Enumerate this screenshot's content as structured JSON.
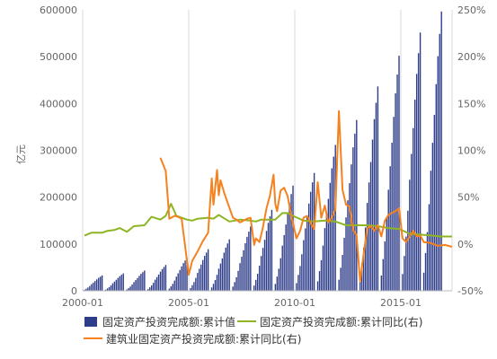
{
  "chart_data": {
    "type": "bar+line",
    "ylabel_left": "亿元",
    "left_axis": {
      "ylim": [
        0,
        600000
      ],
      "ticks": [
        0,
        100000,
        200000,
        300000,
        400000,
        500000,
        600000
      ]
    },
    "right_axis": {
      "ylim": [
        -50,
        250
      ],
      "ticks": [
        "-50%",
        "0%",
        "50%",
        "100%",
        "150%",
        "200%",
        "250%"
      ]
    },
    "x_axis": {
      "start": "2000-01",
      "end": "2017-06",
      "ticks": [
        "2000-01",
        "2005-01",
        "2010-01",
        "2015-01"
      ]
    },
    "grid": "vertical",
    "legend_position": "bottom",
    "series": [
      {
        "name": "固定资产投资完成额:累计值",
        "kind": "bar",
        "axis": "left",
        "color": "#2e3d8a",
        "annual_totals": [
          32900,
          37200,
          43200,
          55200,
          70400,
          88800,
          109900,
          137300,
          172800,
          224600,
          251700,
          311500,
          364800,
          436500,
          502000,
          551600,
          596500
        ],
        "note_shape": "monthly cumulative values rising each year from near zero (Jan–Feb) to the December total"
      },
      {
        "name": "固定资产投资完成额:累计同比(右)",
        "kind": "line",
        "axis": "right",
        "color": "#8db524",
        "points": [
          [
            "2000-02",
            9
          ],
          [
            "2000-06",
            12
          ],
          [
            "2000-12",
            12
          ],
          [
            "2001-03",
            14
          ],
          [
            "2001-07",
            15
          ],
          [
            "2001-10",
            17
          ],
          [
            "2002-02",
            13
          ],
          [
            "2002-06",
            19
          ],
          [
            "2002-12",
            20
          ],
          [
            "2003-03",
            27
          ],
          [
            "2003-04",
            29
          ],
          [
            "2003-09",
            26
          ],
          [
            "2003-12",
            30
          ],
          [
            "2004-03",
            43
          ],
          [
            "2004-06",
            30
          ],
          [
            "2004-12",
            26
          ],
          [
            "2005-03",
            25
          ],
          [
            "2005-06",
            27
          ],
          [
            "2005-12",
            28
          ],
          [
            "2006-03",
            27
          ],
          [
            "2006-06",
            31
          ],
          [
            "2006-12",
            24
          ],
          [
            "2007-03",
            25
          ],
          [
            "2007-06",
            26
          ],
          [
            "2007-12",
            25
          ],
          [
            "2008-03",
            24
          ],
          [
            "2008-06",
            26
          ],
          [
            "2008-12",
            26
          ],
          [
            "2009-02",
            26
          ],
          [
            "2009-06",
            33
          ],
          [
            "2009-09",
            33
          ],
          [
            "2009-12",
            30
          ],
          [
            "2010-06",
            25
          ],
          [
            "2010-12",
            24
          ],
          [
            "2011-06",
            25
          ],
          [
            "2011-12",
            24
          ],
          [
            "2012-06",
            20
          ],
          [
            "2012-12",
            20
          ],
          [
            "2013-06",
            20
          ],
          [
            "2013-12",
            19
          ],
          [
            "2014-06",
            17
          ],
          [
            "2014-12",
            16
          ],
          [
            "2015-06",
            11
          ],
          [
            "2015-12",
            10
          ],
          [
            "2016-06",
            9
          ],
          [
            "2016-12",
            8
          ],
          [
            "2017-06",
            8
          ]
        ]
      },
      {
        "name": "建筑业固定资产投资完成额:累计同比(右)",
        "kind": "line",
        "axis": "right",
        "color": "#f5821f",
        "points": [
          [
            "2003-09",
            92
          ],
          [
            "2003-12",
            78
          ],
          [
            "2004-02",
            27
          ],
          [
            "2004-05",
            30
          ],
          [
            "2004-07",
            29
          ],
          [
            "2004-09",
            27
          ],
          [
            "2005-01",
            -33
          ],
          [
            "2005-03",
            -18
          ],
          [
            "2005-06",
            -8
          ],
          [
            "2005-09",
            3
          ],
          [
            "2005-12",
            12
          ],
          [
            "2006-02",
            70
          ],
          [
            "2006-03",
            42
          ],
          [
            "2006-05",
            79
          ],
          [
            "2006-06",
            52
          ],
          [
            "2006-07",
            68
          ],
          [
            "2006-09",
            55
          ],
          [
            "2006-11",
            44
          ],
          [
            "2007-02",
            28
          ],
          [
            "2007-04",
            26
          ],
          [
            "2007-06",
            23
          ],
          [
            "2007-08",
            25
          ],
          [
            "2007-10",
            27
          ],
          [
            "2007-12",
            28
          ],
          [
            "2008-02",
            -1
          ],
          [
            "2008-03",
            6
          ],
          [
            "2008-05",
            2
          ],
          [
            "2008-07",
            18
          ],
          [
            "2008-09",
            38
          ],
          [
            "2008-11",
            52
          ],
          [
            "2009-01",
            74
          ],
          [
            "2009-02",
            43
          ],
          [
            "2009-03",
            35
          ],
          [
            "2009-05",
            57
          ],
          [
            "2009-07",
            60
          ],
          [
            "2009-09",
            51
          ],
          [
            "2009-11",
            30
          ],
          [
            "2010-02",
            6
          ],
          [
            "2010-04",
            14
          ],
          [
            "2010-06",
            28
          ],
          [
            "2010-08",
            30
          ],
          [
            "2010-10",
            22
          ],
          [
            "2010-12",
            16
          ],
          [
            "2011-02",
            66
          ],
          [
            "2011-04",
            28
          ],
          [
            "2011-06",
            41
          ],
          [
            "2011-08",
            23
          ],
          [
            "2011-10",
            28
          ],
          [
            "2011-12",
            37
          ],
          [
            "2012-02",
            142
          ],
          [
            "2012-04",
            58
          ],
          [
            "2012-06",
            42
          ],
          [
            "2012-08",
            40
          ],
          [
            "2012-10",
            15
          ],
          [
            "2012-12",
            9
          ],
          [
            "2013-02",
            -40
          ],
          [
            "2013-04",
            -10
          ],
          [
            "2013-06",
            17
          ],
          [
            "2013-08",
            19
          ],
          [
            "2013-10",
            14
          ],
          [
            "2013-12",
            20
          ],
          [
            "2014-02",
            8
          ],
          [
            "2014-04",
            25
          ],
          [
            "2014-06",
            31
          ],
          [
            "2014-08",
            33
          ],
          [
            "2014-10",
            35
          ],
          [
            "2014-12",
            38
          ],
          [
            "2015-02",
            6
          ],
          [
            "2015-04",
            2
          ],
          [
            "2015-06",
            8
          ],
          [
            "2015-08",
            14
          ],
          [
            "2015-10",
            8
          ],
          [
            "2015-12",
            9
          ],
          [
            "2016-02",
            2
          ],
          [
            "2016-06",
            1
          ],
          [
            "2016-10",
            -2
          ],
          [
            "2017-02",
            -1
          ],
          [
            "2017-06",
            -3
          ]
        ]
      }
    ]
  }
}
